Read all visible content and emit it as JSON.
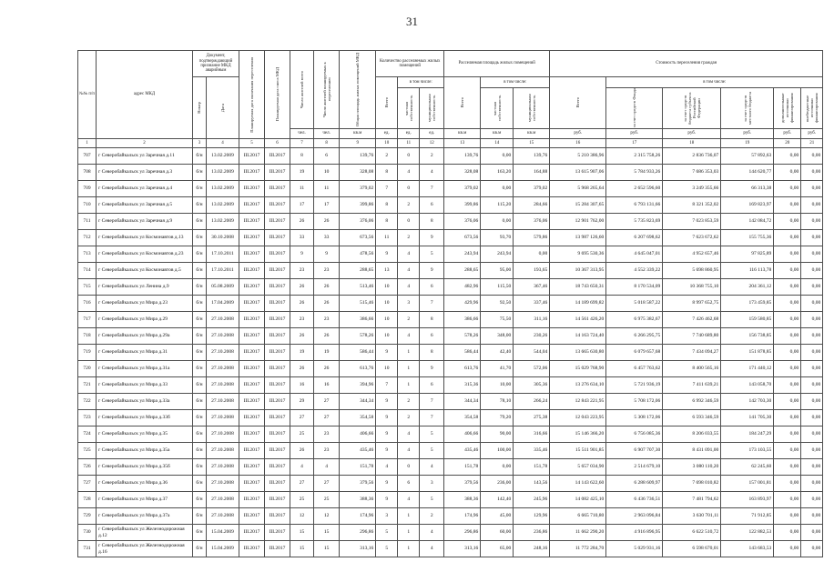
{
  "page": {
    "number": "31"
  },
  "table": {
    "headers": {
      "num": "№№ п/п",
      "address": "адрес МКД",
      "doc_group": "Документ, подтверждающий признание МКД аварийным",
      "doc_number": "Номер",
      "doc_date": "Дата",
      "resettle_date": "Планируемая дата окончания переселения",
      "demolish_date": "Планируемая дата сноса МКД",
      "residents_total": "Число жителей всего",
      "residents_planned": "Число жителей планируемых к переселению",
      "total_area": "Общая площадь жилых помещений МКД",
      "units_group": "Количество расселяемых жилых помещений",
      "area_group": "Расселяемая площадь жилых помещений",
      "cost_group": "Стоимость переселения граждан",
      "total": "Всего",
      "including": "в том числе:",
      "private": "частная собственность",
      "municipal": "муниципальная собственность",
      "fund": "за счет средств Фонда",
      "region_budget": "за счет средств бюджета субъекта Российской Федерации",
      "local_budget": "за счет средств местного бюджета",
      "extra_sources": "дополнительные источники финансирования",
      "offbudget": "внебюджетные источники финансирования"
    },
    "units_row": [
      "чел.",
      "чел.",
      "кв.м",
      "ед.",
      "ед.",
      "ед.",
      "кв.м",
      "кв.м",
      "кв.м",
      "руб.",
      "руб.",
      "руб.",
      "руб.",
      "руб.",
      "руб."
    ],
    "colnum_row": [
      "1",
      "2",
      "3",
      "4",
      "5",
      "6",
      "7",
      "8",
      "9",
      "10",
      "11",
      "12",
      "13",
      "14",
      "15",
      "16",
      "17",
      "18",
      "19",
      "20",
      "21"
    ],
    "rows": [
      [
        "707",
        "г Северобайкальск ул Заречная д.11",
        "б/н",
        "13.02.2009",
        "III.2017",
        "III.2017",
        "8",
        "6",
        "139,76",
        "2",
        "0",
        "2",
        "139,76",
        "0,00",
        "139,76",
        "5 210 386,96",
        "2 315 758,26",
        "2 836 736,07",
        "57 892,63",
        "0,00",
        "0,00"
      ],
      [
        "708",
        "г Северобайкальск ул Заречная д.3",
        "б/н",
        "13.02.2009",
        "III.2017",
        "III.2017",
        "19",
        "10",
        "328,08",
        "8",
        "4",
        "4",
        "328,08",
        "163,20",
        "164,88",
        "13 615 907,06",
        "5 784 933,26",
        "7 686 353,03",
        "144 620,77",
        "0,00",
        "0,00"
      ],
      [
        "709",
        "г Северобайкальск ул Заречная д.4",
        "б/н",
        "13.02.2009",
        "III.2017",
        "III.2017",
        "11",
        "11",
        "379,02",
        "7",
        "0",
        "7",
        "379,02",
        "0,00",
        "379,02",
        "5 968 265,64",
        "2 652 596,60",
        "3 249 355,66",
        "66 313,38",
        "0,00",
        "0,00"
      ],
      [
        "710",
        "г Северобайкальск ул Заречная д.5",
        "б/н",
        "13.02.2009",
        "III.2017",
        "III.2017",
        "17",
        "17",
        "399,86",
        "8",
        "2",
        "6",
        "399,86",
        "115,20",
        "284,66",
        "15 284 307,65",
        "6 793 131,66",
        "8 321 352,02",
        "169 823,97",
        "0,00",
        "0,00"
      ],
      [
        "711",
        "г Северобайкальск ул Заречная д.9",
        "б/н",
        "13.02.2009",
        "III.2017",
        "III.2017",
        "26",
        "26",
        "376,06",
        "8",
        "0",
        "8",
        "376,06",
        "0,00",
        "376,06",
        "12 901 762,00",
        "5 735 823,69",
        "7 023 853,59",
        "142 084,72",
        "0,00",
        "0,00"
      ],
      [
        "712",
        "г Северобайкальск ул Космонавтов д.13",
        "б/н",
        "30.10.2008",
        "III.2017",
        "III.2017",
        "33",
        "33",
        "673,56",
        "11",
        "2",
        "9",
        "673,56",
        "93,70",
        "579,86",
        "13 987 126,60",
        "6 207 698,62",
        "7 623 672,62",
        "155 755,36",
        "0,00",
        "0,00"
      ],
      [
        "713",
        "г Северобайкальск ул Космонавтов д.23",
        "б/н",
        "17.10.2011",
        "III.2017",
        "III.2017",
        "9",
        "9",
        "478,56",
        "9",
        "4",
        "5",
        "243,94",
        "243,94",
        "0,00",
        "9 695 530,36",
        "4 645 047,01",
        "4 952 657,46",
        "97 825,89",
        "0,00",
        "0,00"
      ],
      [
        "714",
        "г Северобайкальск ул Космонавтов д.5",
        "б/н",
        "17.10.2011",
        "III.2017",
        "III.2017",
        "23",
        "23",
        "288,65",
        "13",
        "4",
        "9",
        "288,65",
        "95,00",
        "193,65",
        "10 367 313,95",
        "4 552 339,22",
        "5 698 860,95",
        "116 113,78",
        "0,00",
        "0,00"
      ],
      [
        "715",
        "г Северобайкальск ул Ленина д.9",
        "б/н",
        "05.08.2009",
        "III.2017",
        "III.2017",
        "26",
        "26",
        "513,46",
        "10",
        "4",
        "6",
        "482,96",
        "115,50",
        "367,46",
        "18 743 650,31",
        "8 170 534,09",
        "10 368 755,10",
        "204 361,12",
        "0,00",
        "0,00"
      ],
      [
        "716",
        "г Северобайкальск ул Мира д.23",
        "б/н",
        "17.04.2009",
        "III.2017",
        "III.2017",
        "26",
        "26",
        "515,46",
        "10",
        "3",
        "7",
        "429,96",
        "92,50",
        "337,46",
        "14 189 699,82",
        "5 018 587,22",
        "8 997 652,75",
        "173 459,85",
        "0,00",
        "0,00"
      ],
      [
        "717",
        "г Северобайкальск ул Мира д.29",
        "б/н",
        "27.10.2008",
        "III.2017",
        "III.2017",
        "23",
        "23",
        "386,66",
        "10",
        "2",
        "8",
        "386,66",
        "75,50",
        "311,16",
        "14 561 426,20",
        "6 975 382,67",
        "7 426 462,68",
        "159 580,85",
        "0,00",
        "0,00"
      ],
      [
        "718",
        "г Северобайкальск ул Мира д.29а",
        "б/н",
        "27.10.2008",
        "III.2017",
        "III.2017",
        "26",
        "26",
        "578,26",
        "10",
        "4",
        "6",
        "578,26",
        "348,00",
        "230,26",
        "14 163 724,40",
        "6 266 295,75",
        "7 740 689,80",
        "156 738,85",
        "0,00",
        "0,00"
      ],
      [
        "719",
        "г Северобайкальск ул Мира д.31",
        "б/н",
        "27.10.2008",
        "III.2017",
        "III.2017",
        "19",
        "19",
        "586,44",
        "9",
        "1",
        "8",
        "586,44",
        "42,40",
        "544,04",
        "13 665 630,80",
        "6 079 657,68",
        "7 434 094,27",
        "151 878,85",
        "0,00",
        "0,00"
      ],
      [
        "720",
        "г Северобайкальск ул Мира д.31а",
        "б/н",
        "27.10.2008",
        "III.2017",
        "III.2017",
        "26",
        "26",
        "613,76",
        "10",
        "1",
        "9",
        "613,76",
        "41,70",
        "572,06",
        "15 029 768,90",
        "6 457 763,62",
        "8 400 565,16",
        "171 440,12",
        "0,00",
        "0,00"
      ],
      [
        "721",
        "г Северобайкальск ул Мира д.33",
        "б/н",
        "27.10.2008",
        "III.2017",
        "III.2017",
        "16",
        "16",
        "394,96",
        "7",
        "1",
        "6",
        "315,36",
        "10,00",
        "305,36",
        "13 276 634,10",
        "5 721 936,19",
        "7 411 639,21",
        "143 058,70",
        "0,00",
        "0,00"
      ],
      [
        "722",
        "г Северобайкальск ул Мира д.33а",
        "б/н",
        "27.10.2008",
        "III.2017",
        "III.2017",
        "29",
        "27",
        "344,34",
        "9",
        "2",
        "7",
        "344,34",
        "78,10",
        "266,24",
        "12 843 221,95",
        "5 708 172,06",
        "6 992 346,59",
        "142 703,30",
        "0,00",
        "0,00"
      ],
      [
        "723",
        "г Северобайкальск ул Мира д.33б",
        "б/н",
        "27.10.2008",
        "III.2017",
        "III.2017",
        "27",
        "27",
        "354,58",
        "9",
        "2",
        "7",
        "354,58",
        "79,20",
        "275,38",
        "12 043 223,95",
        "5 308 172,06",
        "6 593 346,59",
        "141 705,30",
        "0,00",
        "0,00"
      ],
      [
        "724",
        "г Северобайкальск ул Мира д.35",
        "б/н",
        "27.10.2008",
        "III.2017",
        "III.2017",
        "25",
        "23",
        "406,66",
        "9",
        "4",
        "5",
        "406,66",
        "90,00",
        "316,66",
        "15 146 366,20",
        "6 756 085,36",
        "8 206 033,55",
        "184 247,29",
        "0,00",
        "0,00"
      ],
      [
        "725",
        "г Северобайкальск ул Мира д.35а",
        "б/н",
        "27.10.2008",
        "III.2017",
        "III.2017",
        "26",
        "23",
        "435,46",
        "9",
        "4",
        "5",
        "435,46",
        "100,00",
        "335,46",
        "15 511 901,85",
        "6 907 707,30",
        "8 431 091,00",
        "173 103,55",
        "0,00",
        "0,00"
      ],
      [
        "726",
        "г Северобайкальск ул Мира д.35б",
        "б/н",
        "27.10.2008",
        "III.2017",
        "III.2017",
        "4",
        "4",
        "151,78",
        "4",
        "0",
        "4",
        "151,78",
        "0,00",
        "151,78",
        "5 657 034,90",
        "2 514 679,10",
        "3 080 110,20",
        "62 245,60",
        "0,00",
        "0,00"
      ],
      [
        "727",
        "г Северобайкальск ул Мира д.36",
        "б/н",
        "27.10.2008",
        "III.2017",
        "III.2017",
        "27",
        "27",
        "379,56",
        "9",
        "6",
        "3",
        "379,56",
        "236,00",
        "143,56",
        "14 143 622,60",
        "6 288 609,97",
        "7 698 010,82",
        "157 001,81",
        "0,00",
        "0,00"
      ],
      [
        "728",
        "г Северобайкальск ул Мира д.37",
        "б/н",
        "27.10.2008",
        "III.2017",
        "III.2017",
        "25",
        "25",
        "388,36",
        "9",
        "4",
        "5",
        "388,36",
        "142,40",
        "245,96",
        "14 082 425,10",
        "6 436 736,51",
        "7 481 794,62",
        "163 893,97",
        "0,00",
        "0,00"
      ],
      [
        "729",
        "г Северобайкальск ул Мира д.37а",
        "б/н",
        "27.10.2008",
        "III.2017",
        "III.2017",
        "12",
        "12",
        "174,96",
        "3",
        "1",
        "2",
        "174,96",
        "45,00",
        "129,96",
        "6 665 710,80",
        "2 963 096,84",
        "3 630 701,11",
        "71 912,85",
        "0,00",
        "0,00"
      ],
      [
        "730",
        "г Северобайкальск ул Железнодорожная д.12",
        "б/н",
        "15.04.2009",
        "III.2017",
        "III.2017",
        "15",
        "15",
        "296,86",
        "5",
        "1",
        "4",
        "296,86",
        "60,00",
        "236,86",
        "11 662 290,20",
        "4 916 896,95",
        "6 622 510,72",
        "122 882,53",
        "0,00",
        "0,00"
      ],
      [
        "731",
        "г Северобайкальск ул Железнодорожная д.16",
        "б/н",
        "15.04.2009",
        "III.2017",
        "III.2017",
        "15",
        "15",
        "313,16",
        "5",
        "1",
        "4",
        "313,16",
        "65,00",
        "248,16",
        "11 772 284,70",
        "5 029 931,16",
        "6 598 670,01",
        "143 683,53",
        "0,00",
        "0,00"
      ]
    ]
  }
}
